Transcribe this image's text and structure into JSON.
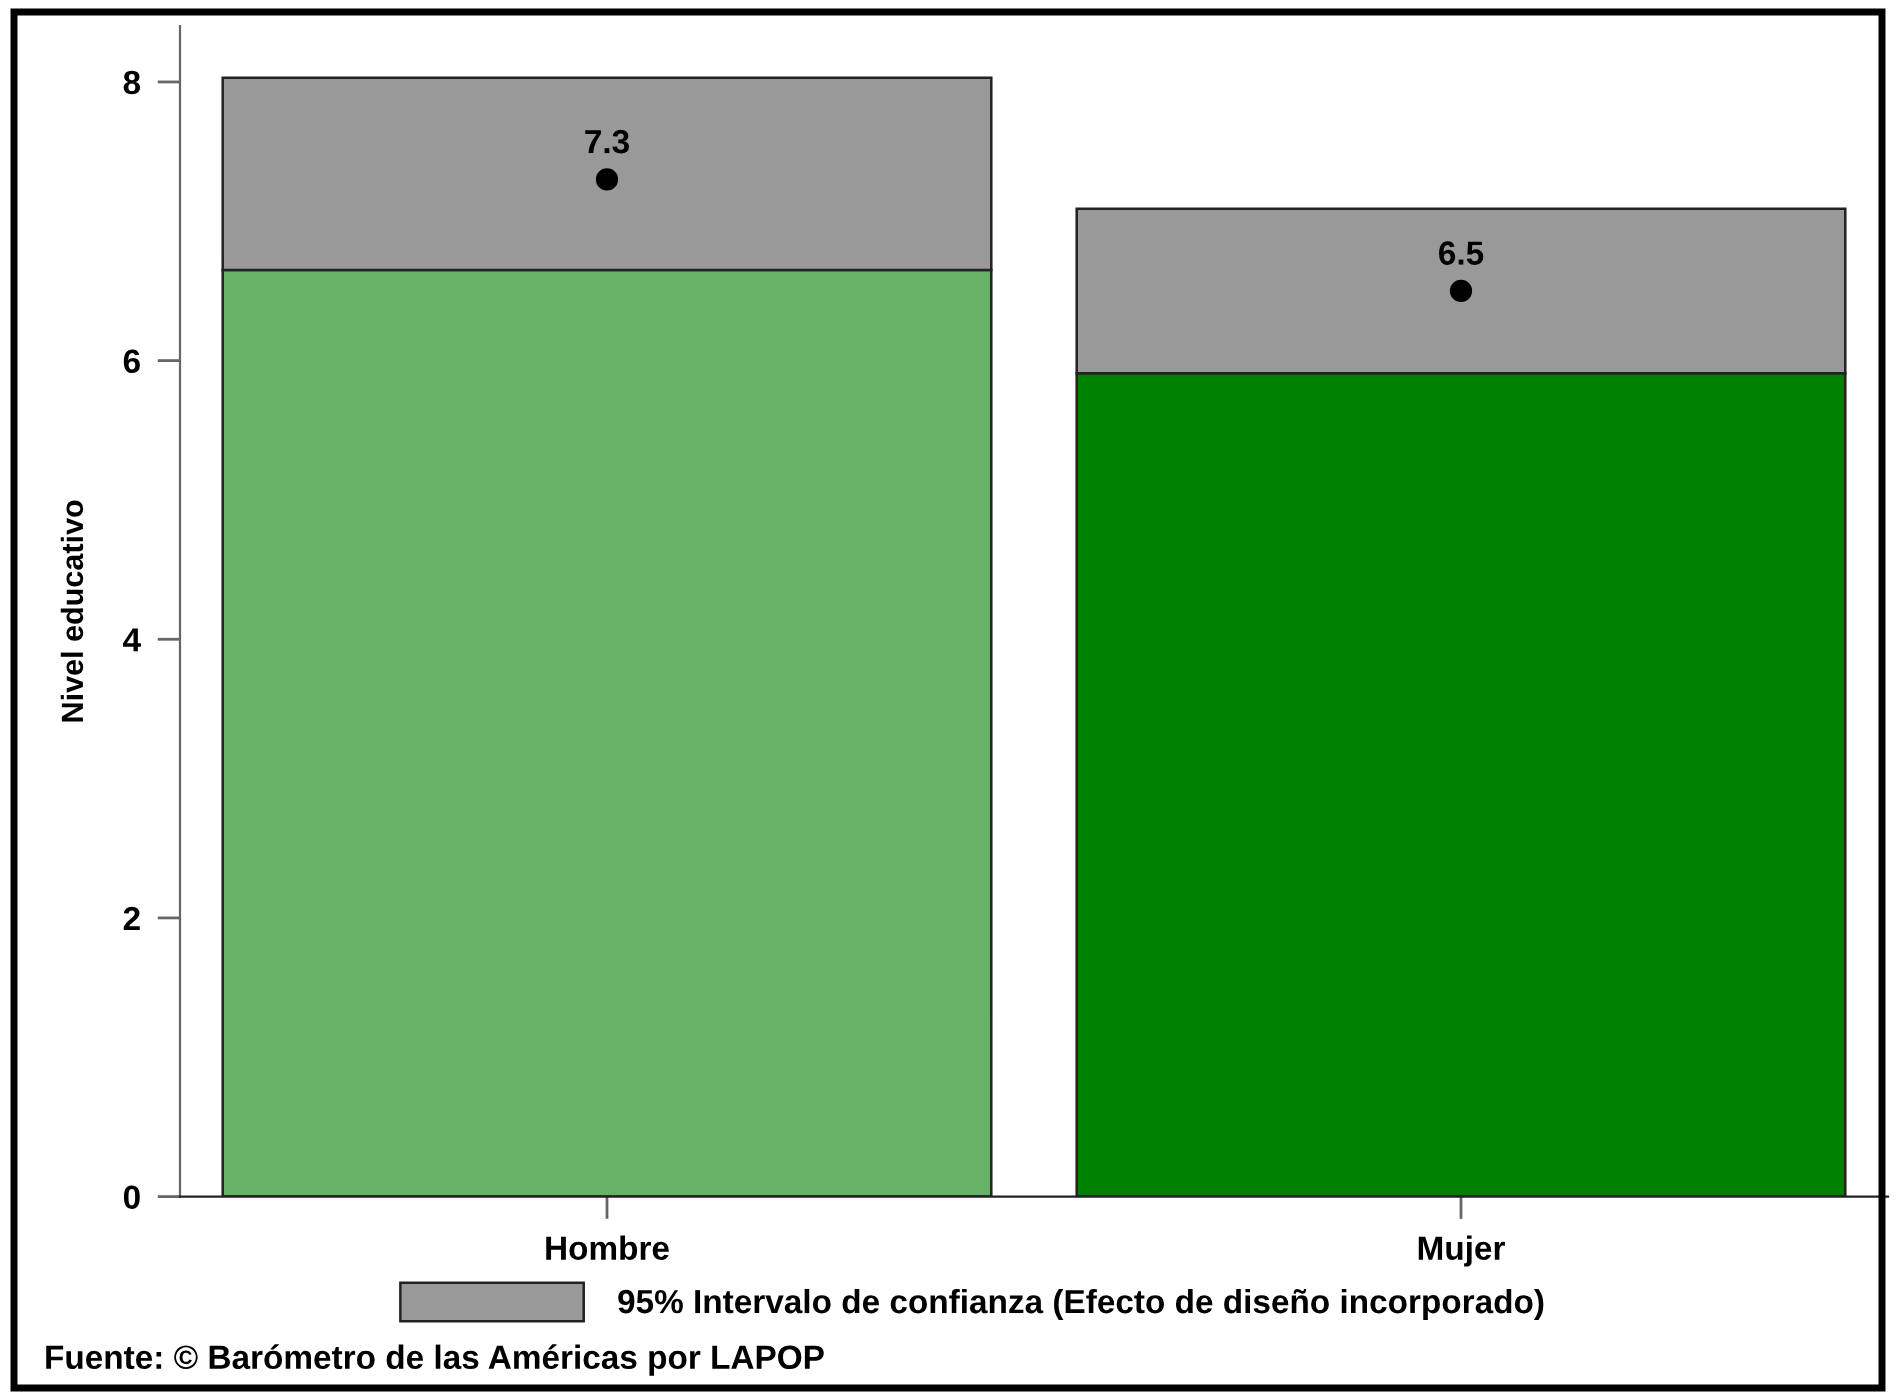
{
  "chart_data": {
    "type": "bar",
    "stacked": true,
    "categories": [
      "Hombre",
      "Mujer"
    ],
    "ylabel": "Nivel educativo",
    "ylim": [
      0,
      8.4
    ],
    "yticks": [
      0,
      2,
      4,
      6,
      8
    ],
    "series": [
      {
        "colors": [
          "#66b266",
          "#008000"
        ],
        "values": [
          6.65,
          5.91
        ]
      },
      {
        "name": "95% Intervalo de confianza (Efecto de diseño incorporado)",
        "color": "#999999",
        "values": [
          1.38,
          1.18
        ]
      },
      {
        "type": "scatter",
        "color": "#000000",
        "marker": "circle",
        "x": [
          "Hombre",
          "Mujer"
        ],
        "values": [
          7.3,
          6.5
        ],
        "value_labels": [
          "7.3",
          "6.5"
        ]
      }
    ],
    "legend": "bottom",
    "annotations": [
      "Fuente: © Barómetro de las Américas por LAPOP"
    ]
  }
}
